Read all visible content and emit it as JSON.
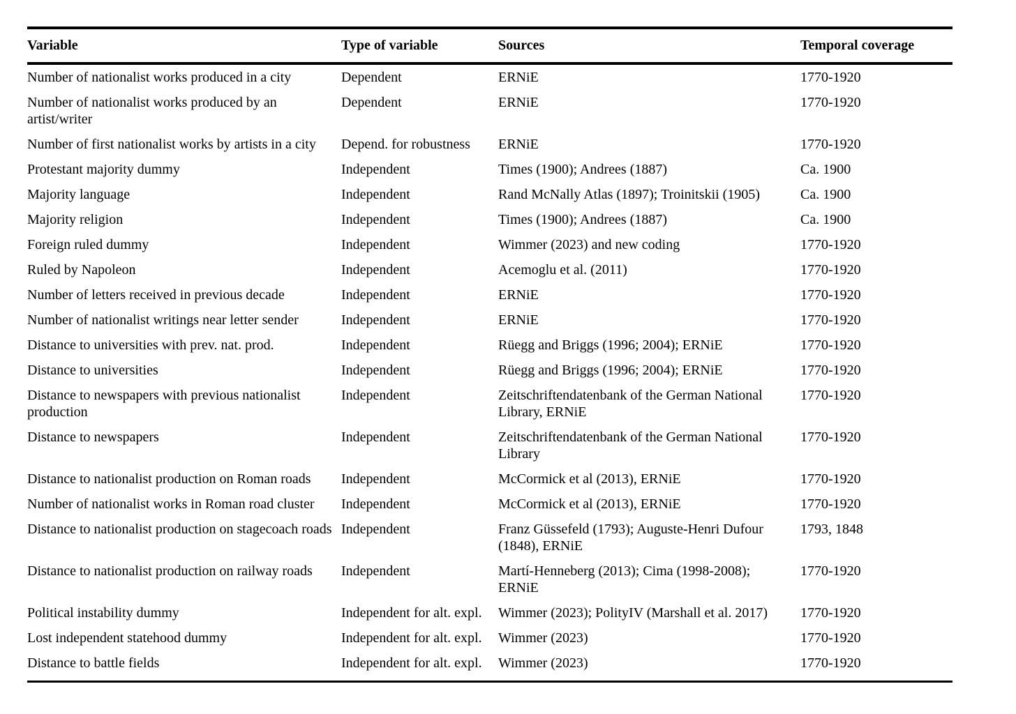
{
  "table": {
    "columns": [
      "Variable",
      "Type of variable",
      "Sources",
      "Temporal coverage"
    ],
    "rows": [
      {
        "variable": "Number of nationalist works produced in a city",
        "type": "Dependent",
        "sources": "ERNiE",
        "coverage": "1770-1920"
      },
      {
        "variable": "Number of nationalist works produced by an artist/writer",
        "type": "Dependent",
        "sources": "ERNiE",
        "coverage": "1770-1920"
      },
      {
        "variable": "Number of first nationalist works by artists in a city",
        "type": "Depend. for robustness",
        "sources": "ERNiE",
        "coverage": "1770-1920"
      },
      {
        "variable": "Protestant majority dummy",
        "type": "Independent",
        "sources": "Times (1900); Andrees (1887)",
        "coverage": "Ca. 1900"
      },
      {
        "variable": "Majority language",
        "type": "Independent",
        "sources": "Rand McNally Atlas (1897); Troinitskii (1905)",
        "coverage": "Ca. 1900"
      },
      {
        "variable": "Majority religion",
        "type": "Independent",
        "sources": "Times (1900); Andrees (1887)",
        "coverage": "Ca. 1900"
      },
      {
        "variable": "Foreign ruled dummy",
        "type": "Independent",
        "sources": "Wimmer (2023) and new coding",
        "coverage": "1770-1920"
      },
      {
        "variable": "Ruled by Napoleon",
        "type": "Independent",
        "sources": "Acemoglu et al. (2011)",
        "coverage": "1770-1920"
      },
      {
        "variable": "Number of letters received in previous decade",
        "type": "Independent",
        "sources": "ERNiE",
        "coverage": "1770-1920"
      },
      {
        "variable": "Number of nationalist writings near letter sender",
        "type": "Independent",
        "sources": "ERNiE",
        "coverage": "1770-1920"
      },
      {
        "variable": "Distance to universities with prev. nat. prod.",
        "type": "Independent",
        "sources": "Rüegg and Briggs (1996; 2004); ERNiE",
        "coverage": "1770-1920"
      },
      {
        "variable": "Distance to universities",
        "type": "Independent",
        "sources": "Rüegg and Briggs (1996; 2004); ERNiE",
        "coverage": "1770-1920"
      },
      {
        "variable": "Distance to newspapers with previous nationalist production",
        "type": "Independent",
        "sources": "Zeitschriftendatenbank of the German National Library, ERNiE",
        "coverage": "1770-1920"
      },
      {
        "variable": "Distance to newspapers",
        "type": "Independent",
        "sources": "Zeitschriftendatenbank of the German National Library",
        "coverage": "1770-1920"
      },
      {
        "variable": "Distance to nationalist production on Roman roads",
        "type": "Independent",
        "sources": "McCormick et al (2013), ERNiE",
        "coverage": "1770-1920"
      },
      {
        "variable": "Number of nationalist works in Roman road cluster",
        "type": "Independent",
        "sources": "McCormick et al (2013), ERNiE",
        "coverage": "1770-1920"
      },
      {
        "variable": "Distance to nationalist production on stagecoach roads",
        "type": "Independent",
        "sources": "Franz Güssefeld (1793); Auguste-Henri Dufour (1848), ERNiE",
        "coverage": "1793, 1848"
      },
      {
        "variable": "Distance to nationalist production on railway roads",
        "type": "Independent",
        "sources": "Martí-Henneberg (2013); Cima (1998-2008); ERNiE",
        "coverage": "1770-1920"
      },
      {
        "variable": "Political instability dummy",
        "type": "Independent for alt. expl.",
        "sources": "Wimmer (2023); PolityIV (Marshall et al. 2017)",
        "coverage": "1770-1920"
      },
      {
        "variable": "Lost independent statehood dummy",
        "type": "Independent for alt. expl.",
        "sources": "Wimmer (2023)",
        "coverage": "1770-1920"
      },
      {
        "variable": "Distance to battle fields",
        "type": "Independent for alt. expl.",
        "sources": "Wimmer (2023)",
        "coverage": "1770-1920"
      }
    ]
  }
}
